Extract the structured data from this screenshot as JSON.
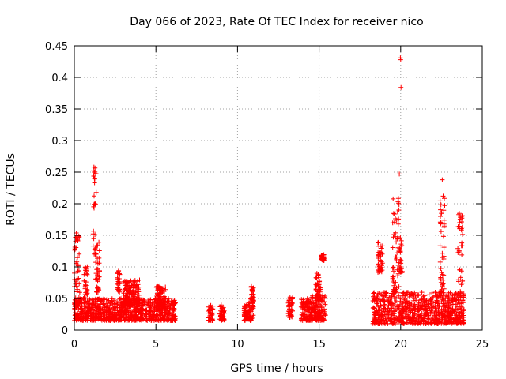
{
  "chart_data": {
    "type": "scatter",
    "title": "Day 066 of 2023, Rate Of TEC Index for receiver nico",
    "xlabel": "GPS time / hours",
    "ylabel": "ROTI / TECUs",
    "xlim": [
      0,
      25
    ],
    "ylim": [
      0,
      0.45
    ],
    "x_ticks": [
      0,
      5,
      10,
      15,
      20,
      25
    ],
    "x_tick_labels": [
      "0",
      "5",
      "10",
      "15",
      "20",
      "25"
    ],
    "y_ticks": [
      0,
      0.05,
      0.1,
      0.15,
      0.2,
      0.25,
      0.3,
      0.35,
      0.4,
      0.45
    ],
    "y_tick_labels": [
      "0",
      "0.05",
      "0.1",
      "0.15",
      "0.2",
      "0.25",
      "0.3",
      "0.35",
      "0.4",
      "0.45"
    ],
    "grid": true,
    "marker": "+",
    "marker_color": "#ff0000",
    "clusters": [
      {
        "x": [
          0.0,
          6.2
        ],
        "y": [
          0.015,
          0.05
        ]
      },
      {
        "x": [
          0.0,
          0.35
        ],
        "y": [
          0.04,
          0.16
        ]
      },
      {
        "x": [
          0.6,
          0.8
        ],
        "y": [
          0.05,
          0.105
        ]
      },
      {
        "x": [
          1.15,
          1.35
        ],
        "y": [
          0.12,
          0.26
        ]
      },
      {
        "x": [
          1.3,
          1.55
        ],
        "y": [
          0.06,
          0.14
        ]
      },
      {
        "x": [
          2.6,
          2.8
        ],
        "y": [
          0.06,
          0.095
        ]
      },
      {
        "x": [
          3.0,
          4.0
        ],
        "y": [
          0.04,
          0.08
        ]
      },
      {
        "x": [
          5.0,
          5.6
        ],
        "y": [
          0.04,
          0.07
        ]
      },
      {
        "x": [
          8.2,
          8.5
        ],
        "y": [
          0.015,
          0.04
        ]
      },
      {
        "x": [
          8.9,
          9.2
        ],
        "y": [
          0.015,
          0.04
        ]
      },
      {
        "x": [
          10.4,
          11.0
        ],
        "y": [
          0.015,
          0.045
        ]
      },
      {
        "x": [
          10.8,
          11.0
        ],
        "y": [
          0.045,
          0.07
        ]
      },
      {
        "x": [
          13.1,
          13.4
        ],
        "y": [
          0.02,
          0.055
        ]
      },
      {
        "x": [
          13.9,
          14.6
        ],
        "y": [
          0.015,
          0.05
        ]
      },
      {
        "x": [
          14.5,
          15.4
        ],
        "y": [
          0.015,
          0.055
        ]
      },
      {
        "x": [
          14.8,
          15.1
        ],
        "y": [
          0.05,
          0.09
        ]
      },
      {
        "x": [
          15.1,
          15.3
        ],
        "y": [
          0.11,
          0.12
        ]
      },
      {
        "x": [
          18.3,
          23.9
        ],
        "y": [
          0.01,
          0.06
        ]
      },
      {
        "x": [
          18.6,
          18.9
        ],
        "y": [
          0.09,
          0.14
        ]
      },
      {
        "x": [
          19.5,
          19.9
        ],
        "y": [
          0.06,
          0.21
        ]
      },
      {
        "x": [
          19.9,
          20.1
        ],
        "y": [
          0.09,
          0.15
        ]
      },
      {
        "x": [
          22.4,
          22.7
        ],
        "y": [
          0.06,
          0.21
        ]
      },
      {
        "x": [
          23.5,
          23.8
        ],
        "y": [
          0.05,
          0.185
        ]
      }
    ],
    "outliers": [
      {
        "x": 19.98,
        "y": 0.431
      },
      {
        "x": 20.0,
        "y": 0.428
      },
      {
        "x": 20.02,
        "y": 0.384
      },
      {
        "x": 19.92,
        "y": 0.247
      },
      {
        "x": 22.55,
        "y": 0.238
      },
      {
        "x": 22.6,
        "y": 0.212
      },
      {
        "x": 1.2,
        "y": 0.258
      },
      {
        "x": 1.22,
        "y": 0.25
      }
    ]
  }
}
